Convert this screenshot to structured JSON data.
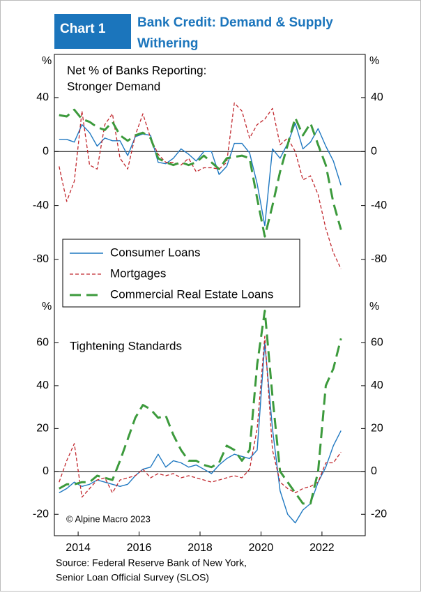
{
  "header": {
    "badge": "Chart 1",
    "title": [
      "Bank Credit: Demand & Supply",
      "Withering"
    ]
  },
  "chart_data": [
    {
      "type": "line",
      "title": [
        "Net % of Banks Reporting:",
        "Stronger Demand"
      ],
      "unit": "%",
      "x": [
        2013.375,
        2013.625,
        2013.875,
        2014.125,
        2014.375,
        2014.625,
        2014.875,
        2015.125,
        2015.375,
        2015.625,
        2015.875,
        2016.125,
        2016.375,
        2016.625,
        2016.875,
        2017.125,
        2017.375,
        2017.625,
        2017.875,
        2018.125,
        2018.375,
        2018.625,
        2018.875,
        2019.125,
        2019.375,
        2019.625,
        2019.875,
        2020.125,
        2020.375,
        2020.625,
        2020.875,
        2021.125,
        2021.375,
        2021.625,
        2021.875,
        2022.125,
        2022.375,
        2022.625
      ],
      "series": [
        {
          "name": "Consumer Loans",
          "color": "#1f78c1",
          "dash": "solid",
          "width": 1.4,
          "values": [
            9,
            9,
            7,
            20,
            14,
            4,
            10,
            8,
            8,
            -3,
            11,
            13,
            12,
            -8,
            -9,
            -5,
            2,
            -2,
            -7,
            0,
            0,
            -17,
            -11,
            6,
            6,
            -1,
            -24,
            -55,
            2,
            -5,
            6,
            21,
            2,
            7,
            17,
            4,
            -7,
            -25
          ]
        },
        {
          "name": "Mortgages",
          "color": "#c1272d",
          "dash": "short",
          "width": 1.3,
          "values": [
            -11,
            -37,
            -22,
            30,
            -10,
            -13,
            20,
            28,
            -5,
            -13,
            12,
            28,
            10,
            -2,
            -8,
            -8,
            -10,
            -5,
            -15,
            -12,
            -12,
            -13,
            -8,
            36,
            30,
            10,
            20,
            24,
            32,
            5,
            10,
            0,
            -21,
            -18,
            -32,
            -57,
            -75,
            -87
          ]
        },
        {
          "name": "Commercial Real Estate Loans",
          "color": "#3c9a3c",
          "dash": "long",
          "width": 3,
          "values": [
            27,
            26,
            31,
            24,
            22,
            18,
            16,
            22,
            12,
            8,
            12,
            14,
            10,
            -5,
            -8,
            -10,
            -8,
            -10,
            -8,
            -3,
            -8,
            -13,
            -5,
            -4,
            -3,
            -5,
            -35,
            -63,
            -40,
            -15,
            5,
            25,
            12,
            21,
            5,
            -10,
            -38,
            -58
          ]
        }
      ],
      "xlim": [
        2013.22,
        2023.42
      ],
      "ylim": [
        -110,
        72
      ],
      "yticks": [
        -80,
        -40,
        0,
        40
      ],
      "legend": "lower left"
    },
    {
      "type": "line",
      "title": "Tightening Standards",
      "annotation": "© Alpine Macro 2023",
      "unit": "%",
      "x": [
        2013.375,
        2013.625,
        2013.875,
        2014.125,
        2014.375,
        2014.625,
        2014.875,
        2015.125,
        2015.375,
        2015.625,
        2015.875,
        2016.125,
        2016.375,
        2016.625,
        2016.875,
        2017.125,
        2017.375,
        2017.625,
        2017.875,
        2018.125,
        2018.375,
        2018.625,
        2018.875,
        2019.125,
        2019.375,
        2019.625,
        2019.875,
        2020.125,
        2020.375,
        2020.625,
        2020.875,
        2021.125,
        2021.375,
        2021.625,
        2021.875,
        2022.125,
        2022.375,
        2022.625
      ],
      "series": [
        {
          "color": "#1f78c1",
          "dash": "solid",
          "width": 1.4,
          "values": [
            -10,
            -8,
            -5,
            -7,
            -6,
            -4,
            -5,
            -6,
            -7,
            -6,
            -2,
            1,
            2,
            8,
            2,
            5,
            4,
            2,
            3,
            1,
            -1,
            3,
            6,
            8,
            7,
            6,
            10,
            60,
            20,
            -9,
            -20,
            -24,
            -18,
            -15,
            -5,
            2,
            12,
            19
          ]
        },
        {
          "color": "#c1272d",
          "dash": "short",
          "width": 1.3,
          "values": [
            -5,
            5,
            13,
            -12,
            -8,
            -4,
            -3,
            -10,
            -4,
            -3,
            -2,
            1,
            -3,
            -1,
            -2,
            -1,
            -3,
            -2,
            -3,
            -4,
            -5,
            -4,
            -3,
            -2,
            -3,
            1,
            20,
            63,
            10,
            -5,
            -8,
            -10,
            -8,
            -7,
            -5,
            4,
            4,
            9
          ]
        },
        {
          "color": "#3c9a3c",
          "dash": "long",
          "width": 3,
          "values": [
            -8,
            -6,
            -6,
            -5,
            -5,
            -2,
            -3,
            -4,
            5,
            15,
            25,
            31,
            29,
            25,
            26,
            17,
            10,
            5,
            5,
            3,
            2,
            4,
            12,
            10,
            5,
            10,
            50,
            75,
            35,
            0,
            -5,
            -10,
            -15,
            -15,
            0,
            40,
            48,
            62
          ]
        }
      ],
      "xlim": [
        2013.22,
        2023.42
      ],
      "ylim": [
        -30,
        80
      ],
      "yticks": [
        -20,
        0,
        20,
        40,
        60
      ],
      "xticks": [
        2014,
        2016,
        2018,
        2020,
        2022
      ]
    }
  ],
  "source": [
    "Source: Federal Reserve Bank of New York,",
    "Senior Loan Official Survey (SLOS)"
  ]
}
